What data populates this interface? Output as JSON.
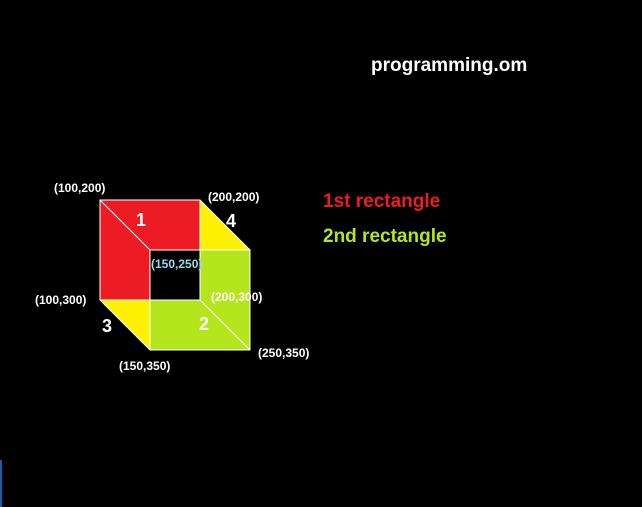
{
  "title": "programming.om",
  "legend": {
    "first": "1st rectangle",
    "second": "2nd rectangle"
  },
  "points": {
    "p100_200": "(100,200)",
    "p200_200": "(200,200)",
    "p150_250": "(150,250)",
    "p100_300": "(100,300)",
    "p200_300": "(200,300)",
    "p150_350": "(150,350)",
    "p250_350": "(250,350)"
  },
  "faces": {
    "f1": "1",
    "f2": "2",
    "f3": "3",
    "f4": "4"
  },
  "colors": {
    "background": "#000000",
    "rect1": "#ed1c24",
    "rect2": "#b5e61d",
    "side": "#fff200",
    "edge": "#ffffff",
    "inner_label": "#99d9ea"
  }
}
